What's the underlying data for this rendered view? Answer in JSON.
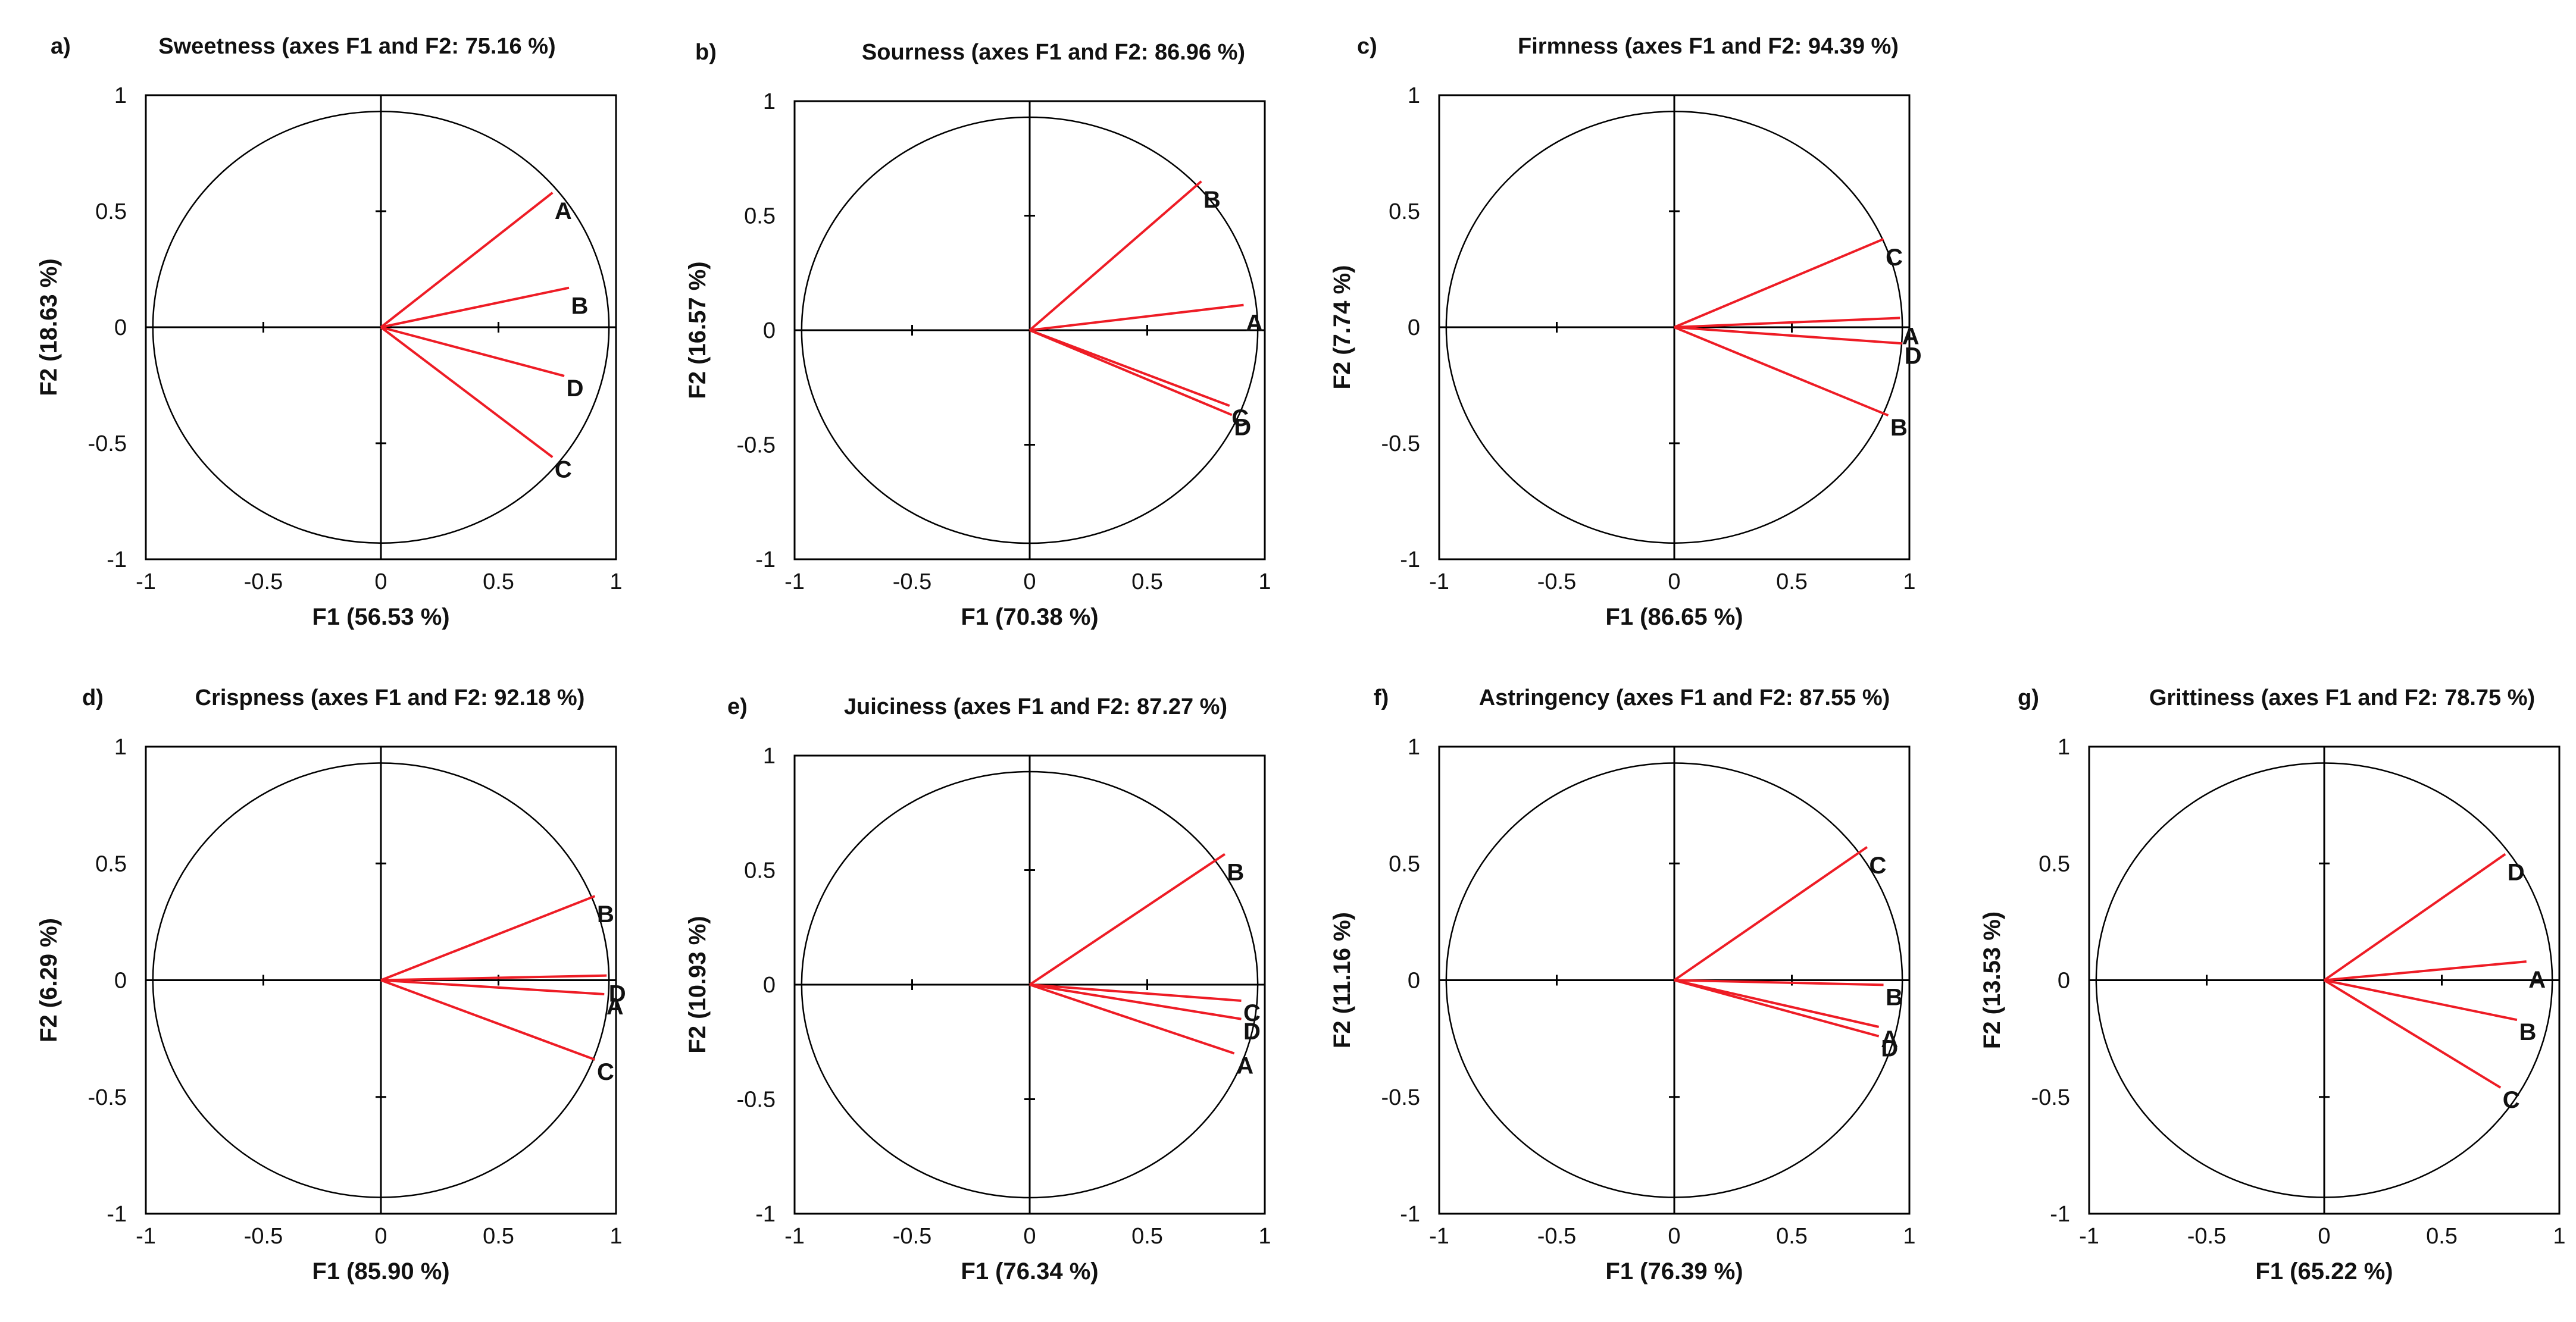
{
  "colors": {
    "vector": "#ee1c25",
    "axis": "#000000",
    "text": "#111111"
  },
  "chart_data": [
    {
      "letter": "a)",
      "type": "scatter",
      "subtype": "correlation-circle",
      "title": "Sweetness (axes F1 and F2: 75.16 %)",
      "xlabel": "F1 (56.53 %)",
      "ylabel": "F2 (18.63 %)",
      "xlim": [
        -1,
        1
      ],
      "ylim": [
        -1,
        1
      ],
      "xticks": [
        "-1",
        "-0.5",
        "0",
        "0.5",
        "1"
      ],
      "yticks": [
        "1",
        "0.5",
        "0",
        "-0.5",
        "-1"
      ],
      "vectors": [
        {
          "name": "A",
          "x": 0.73,
          "y": 0.58
        },
        {
          "name": "B",
          "x": 0.8,
          "y": 0.17
        },
        {
          "name": "D",
          "x": 0.78,
          "y": -0.21
        },
        {
          "name": "C",
          "x": 0.73,
          "y": -0.56
        }
      ]
    },
    {
      "letter": "b)",
      "type": "scatter",
      "subtype": "correlation-circle",
      "title": "Sourness (axes F1 and F2: 86.96 %)",
      "xlabel": "F1 (70.38 %)",
      "ylabel": "F2 (16.57 %)",
      "xlim": [
        -1,
        1
      ],
      "ylim": [
        -1,
        1
      ],
      "xticks": [
        "-1",
        "-0.5",
        "0",
        "0.5",
        "1"
      ],
      "yticks": [
        "1",
        "0.5",
        "0",
        "-0.5",
        "-1"
      ],
      "vectors": [
        {
          "name": "B",
          "x": 0.73,
          "y": 0.65
        },
        {
          "name": "A",
          "x": 0.91,
          "y": 0.11
        },
        {
          "name": "C",
          "x": 0.85,
          "y": -0.33
        },
        {
          "name": "D",
          "x": 0.86,
          "y": -0.37
        }
      ]
    },
    {
      "letter": "c)",
      "type": "scatter",
      "subtype": "correlation-circle",
      "title": "Firmness (axes F1 and F2: 94.39 %)",
      "xlabel": "F1 (86.65 %)",
      "ylabel": "F2 (7.74 %)",
      "xlim": [
        -1,
        1
      ],
      "ylim": [
        -1,
        1
      ],
      "xticks": [
        "-1",
        "-0.5",
        "0",
        "0.5",
        "1"
      ],
      "yticks": [
        "1",
        "0.5",
        "0",
        "-0.5",
        "-1"
      ],
      "vectors": [
        {
          "name": "C",
          "x": 0.89,
          "y": 0.38
        },
        {
          "name": "A",
          "x": 0.96,
          "y": 0.04
        },
        {
          "name": "D",
          "x": 0.97,
          "y": -0.07
        },
        {
          "name": "B",
          "x": 0.91,
          "y": -0.38
        }
      ]
    },
    {
      "letter": "d)",
      "type": "scatter",
      "subtype": "correlation-circle",
      "title": "Crispness (axes F1 and F2: 92.18 %)",
      "xlabel": "F1 (85.90 %)",
      "ylabel": "F2 (6.29 %)",
      "xlim": [
        -1,
        1
      ],
      "ylim": [
        -1,
        1
      ],
      "xticks": [
        "-1",
        "-0.5",
        "0",
        "0.5",
        "1"
      ],
      "yticks": [
        "1",
        "0.5",
        "0",
        "-0.5",
        "-1"
      ],
      "vectors": [
        {
          "name": "B",
          "x": 0.91,
          "y": 0.36
        },
        {
          "name": "D",
          "x": 0.96,
          "y": 0.02
        },
        {
          "name": "A",
          "x": 0.95,
          "y": -0.06
        },
        {
          "name": "C",
          "x": 0.91,
          "y": -0.34
        }
      ]
    },
    {
      "letter": "e)",
      "type": "scatter",
      "subtype": "correlation-circle",
      "title": "Juiciness (axes F1 and F2: 87.27 %)",
      "xlabel": "F1 (76.34 %)",
      "ylabel": "F2 (10.93 %)",
      "xlim": [
        -1,
        1
      ],
      "ylim": [
        -1,
        1
      ],
      "xticks": [
        "-1",
        "-0.5",
        "0",
        "0.5",
        "1"
      ],
      "yticks": [
        "1",
        "0.5",
        "0",
        "-0.5",
        "-1"
      ],
      "vectors": [
        {
          "name": "B",
          "x": 0.83,
          "y": 0.57
        },
        {
          "name": "C",
          "x": 0.9,
          "y": -0.07
        },
        {
          "name": "D",
          "x": 0.9,
          "y": -0.15
        },
        {
          "name": "A",
          "x": 0.87,
          "y": -0.3
        }
      ]
    },
    {
      "letter": "f)",
      "type": "scatter",
      "subtype": "correlation-circle",
      "title": "Astringency (axes F1 and F2: 87.55 %)",
      "xlabel": "F1 (76.39 %)",
      "ylabel": "F2 (11.16 %)",
      "xlim": [
        -1,
        1
      ],
      "ylim": [
        -1,
        1
      ],
      "xticks": [
        "-1",
        "-0.5",
        "0",
        "0.5",
        "1"
      ],
      "yticks": [
        "1",
        "0.5",
        "0",
        "-0.5",
        "-1"
      ],
      "vectors": [
        {
          "name": "C",
          "x": 0.82,
          "y": 0.57
        },
        {
          "name": "B",
          "x": 0.89,
          "y": -0.02
        },
        {
          "name": "A",
          "x": 0.87,
          "y": -0.2
        },
        {
          "name": "D",
          "x": 0.87,
          "y": -0.24
        }
      ]
    },
    {
      "letter": "g)",
      "type": "scatter",
      "subtype": "correlation-circle",
      "title": "Grittiness (axes F1 and F2: 78.75 %)",
      "xlabel": "F1 (65.22 %)",
      "ylabel": "F2 (13.53 %)",
      "xlim": [
        -1,
        1
      ],
      "ylim": [
        -1,
        1
      ],
      "xticks": [
        "-1",
        "-0.5",
        "0",
        "0.5",
        "1"
      ],
      "yticks": [
        "1",
        "0.5",
        "0",
        "-0.5",
        "-1"
      ],
      "vectors": [
        {
          "name": "D",
          "x": 0.77,
          "y": 0.54
        },
        {
          "name": "A",
          "x": 0.86,
          "y": 0.08
        },
        {
          "name": "B",
          "x": 0.82,
          "y": -0.17
        },
        {
          "name": "C",
          "x": 0.75,
          "y": -0.46
        }
      ]
    }
  ]
}
